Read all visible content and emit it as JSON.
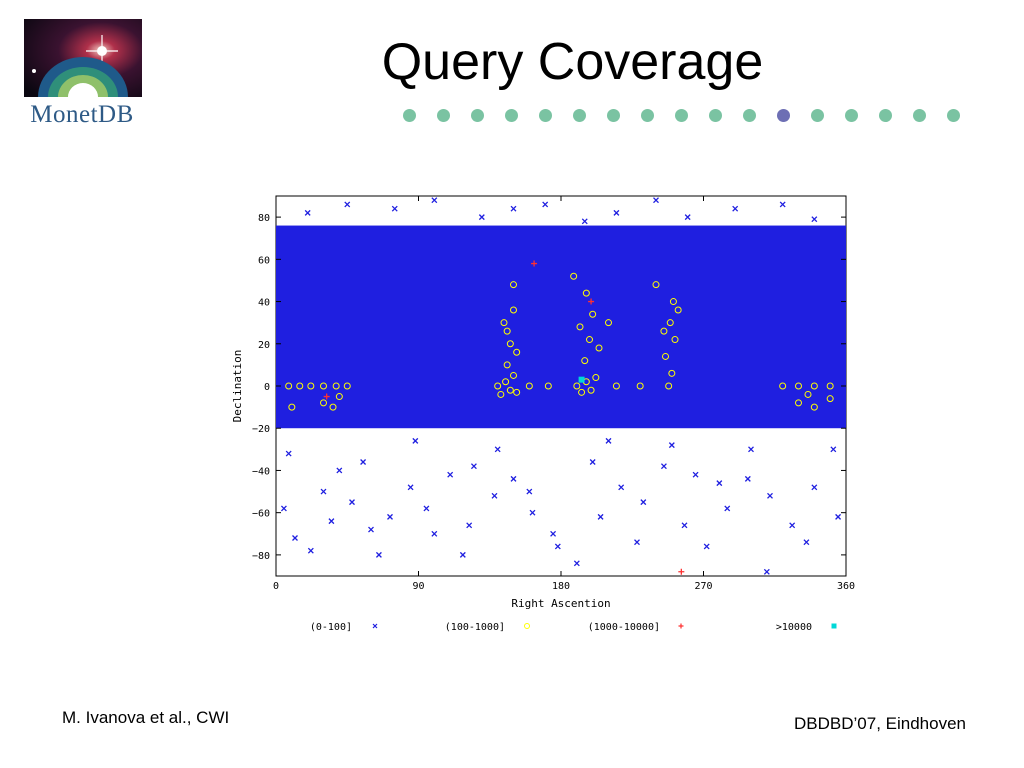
{
  "slide": {
    "title": "Query Coverage",
    "logo_text": "MonetDB",
    "author": "M. Ivanova et al., CWI",
    "venue": "DBDBD’07, Eindhoven"
  },
  "progress": {
    "total": 17,
    "current": 12,
    "colors": {
      "inactive": "#7ac3a2",
      "active": "#6d6fb4"
    }
  },
  "chart_data": {
    "type": "scatter",
    "xlabel": "Right Ascention",
    "ylabel": "Declination",
    "xlim": [
      0,
      360
    ],
    "ylim": [
      -90,
      90
    ],
    "xticks": [
      0,
      90,
      180,
      270,
      360
    ],
    "yticks": [
      -80,
      -60,
      -40,
      -20,
      0,
      20,
      40,
      60,
      80
    ],
    "grid": false,
    "legend_position": "bottom",
    "series": [
      {
        "name": "(0-100]",
        "marker": "×",
        "color": "#1f1fe0",
        "coverage_band": {
          "x": [
            0,
            360
          ],
          "y": [
            -20,
            76
          ]
        },
        "points": [
          [
            12,
            -72
          ],
          [
            22,
            -78
          ],
          [
            35,
            -64
          ],
          [
            48,
            -55
          ],
          [
            60,
            -68
          ],
          [
            72,
            -62
          ],
          [
            85,
            -48
          ],
          [
            95,
            -58
          ],
          [
            110,
            -42
          ],
          [
            122,
            -66
          ],
          [
            138,
            -52
          ],
          [
            150,
            -44
          ],
          [
            162,
            -60
          ],
          [
            175,
            -70
          ],
          [
            190,
            -84
          ],
          [
            205,
            -62
          ],
          [
            218,
            -48
          ],
          [
            232,
            -55
          ],
          [
            245,
            -38
          ],
          [
            258,
            -66
          ],
          [
            272,
            -76
          ],
          [
            285,
            -58
          ],
          [
            298,
            -44
          ],
          [
            312,
            -52
          ],
          [
            326,
            -66
          ],
          [
            340,
            -48
          ],
          [
            352,
            -30
          ],
          [
            8,
            -32
          ],
          [
            40,
            -40
          ],
          [
            88,
            -26
          ],
          [
            140,
            -30
          ],
          [
            200,
            -36
          ],
          [
            250,
            -28
          ],
          [
            300,
            -30
          ],
          [
            20,
            82
          ],
          [
            45,
            86
          ],
          [
            75,
            84
          ],
          [
            100,
            88
          ],
          [
            130,
            80
          ],
          [
            150,
            84
          ],
          [
            170,
            86
          ],
          [
            195,
            78
          ],
          [
            215,
            82
          ],
          [
            240,
            88
          ],
          [
            260,
            80
          ],
          [
            290,
            84
          ],
          [
            320,
            86
          ],
          [
            340,
            79
          ],
          [
            65,
            -80
          ],
          [
            118,
            -80
          ],
          [
            178,
            -76
          ],
          [
            228,
            -74
          ],
          [
            310,
            -88
          ],
          [
            30,
            -50
          ],
          [
            100,
            -70
          ],
          [
            160,
            -50
          ],
          [
            265,
            -42
          ],
          [
            335,
            -74
          ],
          [
            5,
            -58
          ],
          [
            55,
            -36
          ],
          [
            125,
            -38
          ],
          [
            210,
            -26
          ],
          [
            280,
            -46
          ],
          [
            355,
            -62
          ]
        ]
      },
      {
        "name": "(100-1000]",
        "marker": "◦",
        "color": "#ffff00",
        "points": [
          [
            140,
            0
          ],
          [
            142,
            -4
          ],
          [
            145,
            2
          ],
          [
            148,
            -2
          ],
          [
            150,
            5
          ],
          [
            152,
            -3
          ],
          [
            146,
            10
          ],
          [
            148,
            20
          ],
          [
            144,
            30
          ],
          [
            150,
            36
          ],
          [
            146,
            26
          ],
          [
            152,
            16
          ],
          [
            190,
            0
          ],
          [
            193,
            -3
          ],
          [
            196,
            2
          ],
          [
            199,
            -2
          ],
          [
            202,
            4
          ],
          [
            195,
            12
          ],
          [
            198,
            22
          ],
          [
            192,
            28
          ],
          [
            200,
            34
          ],
          [
            204,
            18
          ],
          [
            196,
            44
          ],
          [
            248,
            0
          ],
          [
            250,
            6
          ],
          [
            246,
            14
          ],
          [
            252,
            22
          ],
          [
            249,
            30
          ],
          [
            254,
            36
          ],
          [
            245,
            26
          ],
          [
            251,
            40
          ],
          [
            8,
            0
          ],
          [
            15,
            0
          ],
          [
            22,
            0
          ],
          [
            30,
            0
          ],
          [
            38,
            0
          ],
          [
            45,
            0
          ],
          [
            320,
            0
          ],
          [
            330,
            0
          ],
          [
            340,
            0
          ],
          [
            350,
            0
          ],
          [
            330,
            -8
          ],
          [
            340,
            -10
          ],
          [
            350,
            -6
          ],
          [
            30,
            -8
          ],
          [
            36,
            -10
          ],
          [
            160,
            0
          ],
          [
            172,
            0
          ],
          [
            215,
            0
          ],
          [
            230,
            0
          ],
          [
            40,
            -5
          ],
          [
            336,
            -4
          ],
          [
            10,
            -10
          ],
          [
            210,
            30
          ],
          [
            240,
            48
          ],
          [
            150,
            48
          ],
          [
            188,
            52
          ]
        ]
      },
      {
        "name": "(1000-10000]",
        "marker": "+",
        "color": "#ff3030",
        "points": [
          [
            163,
            58
          ],
          [
            32,
            -5
          ],
          [
            199,
            40
          ],
          [
            256,
            -88
          ]
        ]
      },
      {
        "name": ">10000",
        "marker": "■",
        "color": "#00d8d8",
        "points": [
          [
            193,
            3
          ]
        ]
      }
    ]
  }
}
